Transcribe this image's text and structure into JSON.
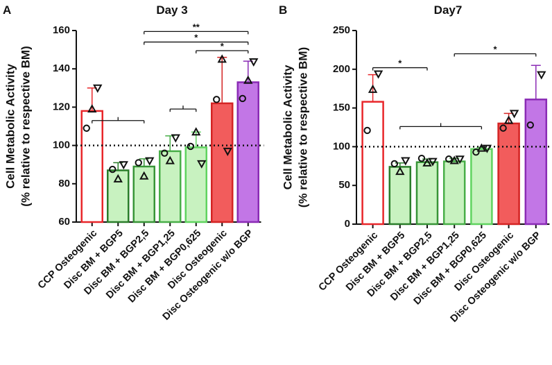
{
  "chart_data": [
    {
      "type": "bar",
      "panel": "A",
      "title": "Day 3",
      "ylabel": [
        "Cell Metabolic Activity",
        "(% relative to respective BM)"
      ],
      "categories": [
        "CCP Osteogenic",
        "Disc BM + BGP5",
        "Disc BM + BGP2,5",
        "Disc BM + BGP1,25",
        "Disc BM + BGP0,625",
        "Disc Osteogenic",
        "Disc Osteogenic w/o BGP"
      ],
      "values": [
        118,
        87,
        89,
        97,
        99,
        122,
        133
      ],
      "errors": [
        12,
        4,
        4,
        8,
        8,
        24,
        11
      ],
      "markers": [
        "circle",
        "triangle-up",
        "triangle-down"
      ],
      "points": [
        [
          109,
          119,
          130
        ],
        [
          87.5,
          82.5,
          90
        ],
        [
          91,
          84,
          92
        ],
        [
          96,
          92,
          104
        ],
        [
          99.5,
          107,
          90.5
        ],
        [
          124,
          145,
          97
        ],
        [
          124.5,
          134,
          143.7
        ]
      ],
      "colors": [
        "#ffffff",
        "#c8f2c0",
        "#c8f2c0",
        "#c8f2c0",
        "#c8f2c0",
        "#f25c5c",
        "#c276e6"
      ],
      "edge_colors": [
        "#e8262a",
        "#2a7d2a",
        "#379437",
        "#48ae48",
        "#5fd35f",
        "#d42424",
        "#8a2bb5"
      ],
      "ylim": [
        60,
        160
      ],
      "yticks": [
        60,
        80,
        100,
        120,
        140,
        160
      ],
      "refline": 100,
      "annotations": [
        {
          "from": 2,
          "to": 6,
          "y": 159.5,
          "label": "**"
        },
        {
          "from": 2,
          "to": 6,
          "y": 154,
          "label": "*"
        },
        {
          "from": 4,
          "to": 6,
          "y": 149.5,
          "label": "*"
        },
        {
          "from": 0,
          "to": 2,
          "y": 113
        },
        {
          "from": 3,
          "to": 4,
          "y": 119
        }
      ]
    },
    {
      "type": "bar",
      "panel": "B",
      "title": "Day7",
      "ylabel": [
        "Cell Metabolic Activity",
        "(% relative to respective BM)"
      ],
      "categories": [
        "CCP Osteogenic",
        "Disc BM + BGP5",
        "Disc BM + BGP2,5",
        "Disc BM + BGP1,25",
        "Disc BM + BGP0,625",
        "Disc Osteogenic",
        "Disc Osteogenic w/o BGP"
      ],
      "values": [
        158,
        74,
        80,
        81,
        97,
        130,
        161
      ],
      "errors": [
        35,
        5,
        4,
        4,
        2,
        13,
        44
      ],
      "markers": [
        "circle",
        "triangle-up",
        "triangle-down"
      ],
      "points": [
        [
          121,
          174,
          194
        ],
        [
          78,
          68,
          82
        ],
        [
          85,
          79,
          81
        ],
        [
          84,
          82,
          84
        ],
        [
          93,
          98,
          98
        ],
        [
          124,
          134,
          143
        ],
        [
          128,
          null,
          193
        ]
      ],
      "colors": [
        "#ffffff",
        "#c8f2c0",
        "#c8f2c0",
        "#c8f2c0",
        "#c8f2c0",
        "#f25c5c",
        "#c276e6"
      ],
      "edge_colors": [
        "#e8262a",
        "#2a7d2a",
        "#379437",
        "#48ae48",
        "#5fd35f",
        "#d42424",
        "#8a2bb5"
      ],
      "ylim": [
        0,
        250
      ],
      "yticks": [
        0,
        50,
        100,
        150,
        200,
        250
      ],
      "refline": 100,
      "annotations": [
        {
          "from": 0,
          "to": 2,
          "y": 202,
          "label": "*"
        },
        {
          "from": 3,
          "to": 6,
          "y": 220,
          "label": "*"
        },
        {
          "from": 1,
          "to": 4,
          "y": 126
        }
      ]
    }
  ]
}
